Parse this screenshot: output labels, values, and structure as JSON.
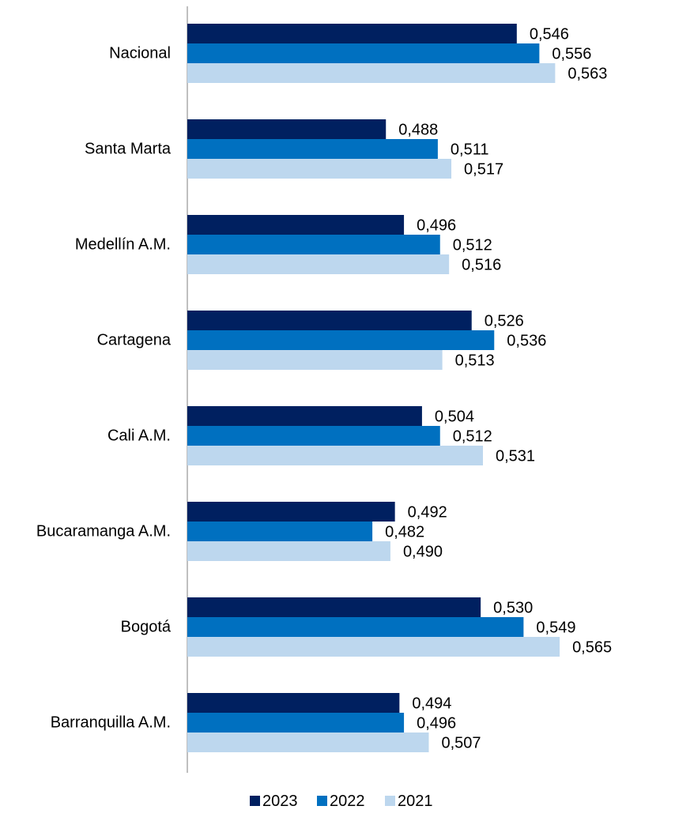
{
  "chart_data": {
    "type": "bar",
    "orientation": "horizontal",
    "categories": [
      "Nacional",
      "Santa Marta",
      "Medellín A.M.",
      "Cartagena",
      "Cali A.M.",
      "Bucaramanga A.M.",
      "Bogotá",
      "Barranquilla A.M."
    ],
    "series": [
      {
        "name": "2023",
        "color": "#002060",
        "values": [
          0.546,
          0.488,
          0.496,
          0.526,
          0.504,
          0.492,
          0.53,
          0.494
        ],
        "labels": [
          "0,546",
          "0,488",
          "0,496",
          "0,526",
          "0,504",
          "0,492",
          "0,530",
          "0,494"
        ]
      },
      {
        "name": "2022",
        "color": "#0070C0",
        "values": [
          0.556,
          0.511,
          0.512,
          0.536,
          0.512,
          0.482,
          0.549,
          0.496
        ],
        "labels": [
          "0,556",
          "0,511",
          "0,512",
          "0,536",
          "0,512",
          "0,482",
          "0,549",
          "0,496"
        ]
      },
      {
        "name": "2021",
        "color": "#BDD7EE",
        "values": [
          0.563,
          0.517,
          0.516,
          0.513,
          0.531,
          0.49,
          0.565,
          0.507
        ],
        "labels": [
          "0,563",
          "0,517",
          "0,516",
          "0,513",
          "0,531",
          "0,490",
          "0,565",
          "0,507"
        ]
      }
    ],
    "xlim": [
      0.4,
      0.58
    ],
    "grid": false,
    "legend_position": "bottom"
  }
}
